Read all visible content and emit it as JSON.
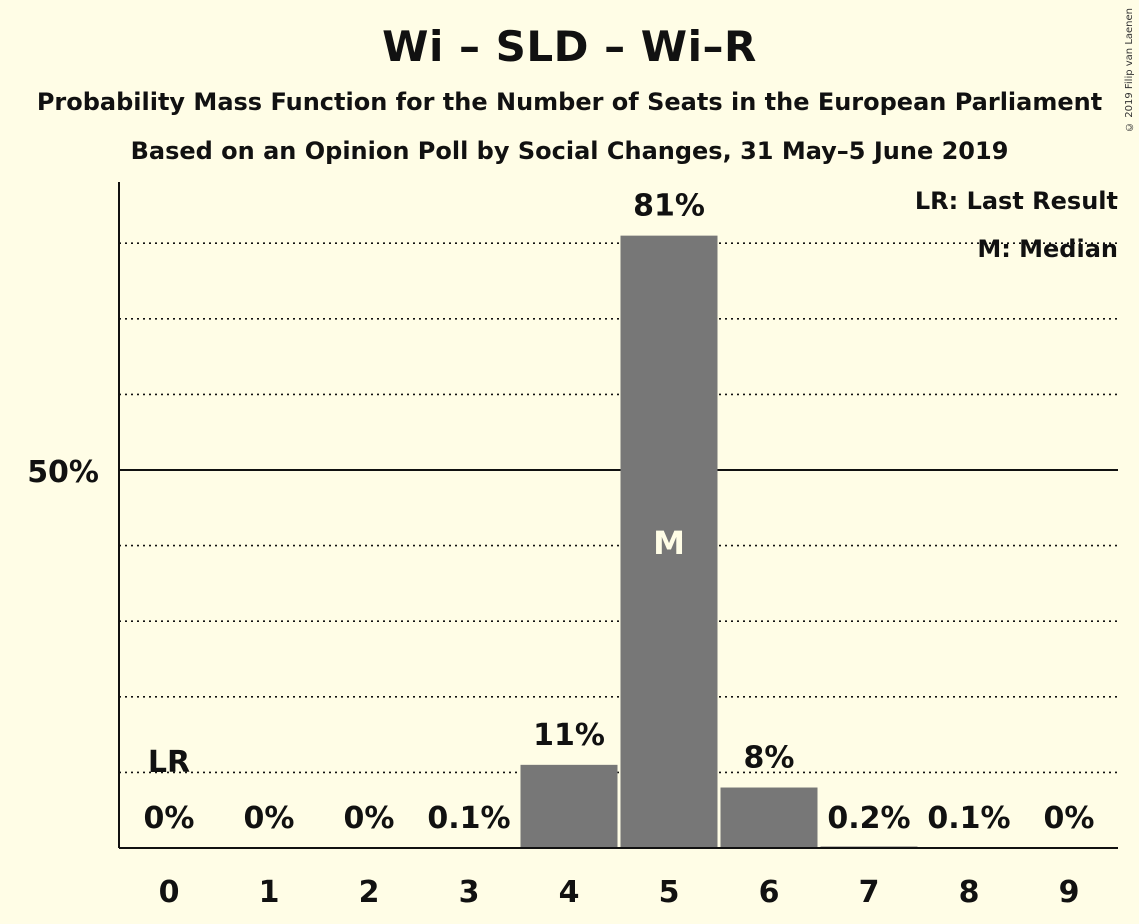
{
  "header": {
    "title": "Wi – SLD – Wi–R",
    "subtitle": "Probability Mass Function for the Number of Seats in the European Parliament",
    "subtitle2": "Based on an Opinion Poll by Social Changes, 31 May–5 June 2019",
    "copyright": "© 2019 Filip van Laenen"
  },
  "legend": {
    "last_result": "LR: Last Result",
    "median": "M: Median"
  },
  "chart_data": {
    "type": "bar",
    "title": "Wi – SLD – Wi–R",
    "categories": [
      "0",
      "1",
      "2",
      "3",
      "4",
      "5",
      "6",
      "7",
      "8",
      "9"
    ],
    "values": [
      0,
      0,
      0,
      0.1,
      11,
      81,
      8,
      0.2,
      0.1,
      0
    ],
    "value_labels": [
      "0%",
      "0%",
      "0%",
      "0.1%",
      "11%",
      "81%",
      "8%",
      "0.2%",
      "0.1%",
      "0%"
    ],
    "ylim": [
      0,
      88
    ],
    "y_tick_label": "50%",
    "y_tick_value": 50,
    "gridlines": [
      10,
      20,
      30,
      40,
      60,
      70,
      80
    ],
    "last_result_seat": 0,
    "last_result_marker": "LR",
    "median_seat": 5,
    "median_marker": "M",
    "bar_color": "#777777",
    "legend_placement": "top-right"
  }
}
